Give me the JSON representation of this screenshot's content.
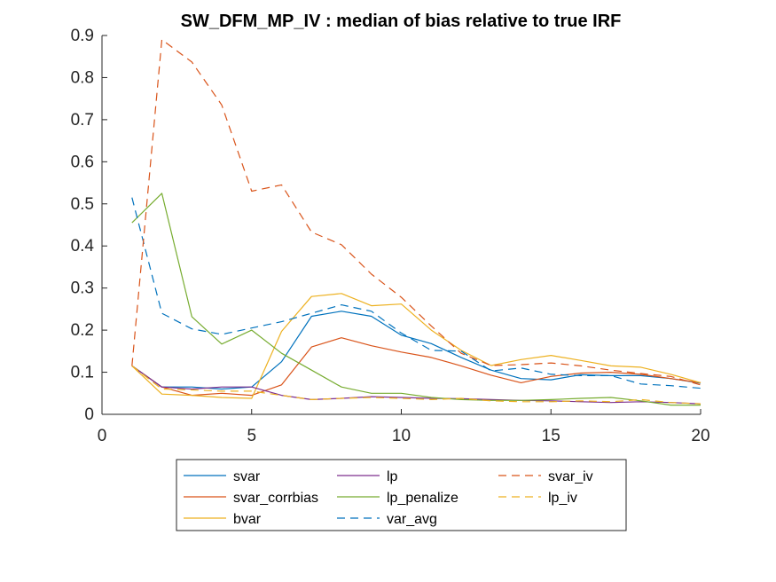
{
  "chart_data": {
    "type": "line",
    "title": "SW_DFM_MP_IV : median of bias relative to true IRF",
    "xlabel": "",
    "ylabel": "",
    "xlim": [
      0,
      20
    ],
    "ylim": [
      0,
      0.9
    ],
    "xticks": [
      0,
      5,
      10,
      15,
      20
    ],
    "yticks": [
      0,
      0.1,
      0.2,
      0.3,
      0.4,
      0.5,
      0.6,
      0.7,
      0.8,
      0.9
    ],
    "xtick_labels": [
      "0",
      "5",
      "10",
      "15",
      "20"
    ],
    "ytick_labels": [
      "0",
      "0.1",
      "0.2",
      "0.3",
      "0.4",
      "0.5",
      "0.6",
      "0.7",
      "0.8",
      "0.9"
    ],
    "grid": false,
    "legend_position": "bottom-outside",
    "x": [
      1,
      2,
      3,
      4,
      5,
      6,
      7,
      8,
      9,
      10,
      11,
      12,
      13,
      14,
      15,
      16,
      17,
      18,
      19,
      20
    ],
    "series": [
      {
        "name": "svar",
        "color": "#0072BD",
        "dash": "solid",
        "values": [
          0.115,
          0.065,
          0.065,
          0.06,
          0.065,
          0.125,
          0.233,
          0.245,
          0.233,
          0.188,
          0.168,
          0.135,
          0.105,
          0.085,
          0.082,
          0.094,
          0.092,
          0.092,
          0.085,
          0.074
        ]
      },
      {
        "name": "svar_corrbias",
        "color": "#D95319",
        "dash": "solid",
        "values": [
          0.115,
          0.065,
          0.045,
          0.05,
          0.045,
          0.07,
          0.16,
          0.182,
          0.163,
          0.148,
          0.135,
          0.115,
          0.093,
          0.075,
          0.09,
          0.098,
          0.1,
          0.095,
          0.085,
          0.075
        ]
      },
      {
        "name": "bvar",
        "color": "#EDB120",
        "dash": "solid",
        "values": [
          0.115,
          0.048,
          0.045,
          0.04,
          0.038,
          0.197,
          0.28,
          0.287,
          0.258,
          0.262,
          0.2,
          0.152,
          0.116,
          0.13,
          0.14,
          0.128,
          0.115,
          0.112,
          0.095,
          0.075
        ]
      },
      {
        "name": "lp",
        "color": "#7E2F8E",
        "dash": "solid",
        "values": [
          0.115,
          0.065,
          0.06,
          0.065,
          0.065,
          0.045,
          0.035,
          0.038,
          0.042,
          0.04,
          0.038,
          0.037,
          0.035,
          0.033,
          0.032,
          0.03,
          0.028,
          0.03,
          0.028,
          0.025
        ]
      },
      {
        "name": "lp_penalize",
        "color": "#77AC30",
        "dash": "solid",
        "values": [
          0.455,
          0.525,
          0.232,
          0.167,
          0.2,
          0.145,
          0.105,
          0.065,
          0.05,
          0.05,
          0.04,
          0.035,
          0.033,
          0.033,
          0.035,
          0.038,
          0.04,
          0.032,
          0.022,
          0.022
        ]
      },
      {
        "name": "var_avg",
        "color": "#0072BD",
        "dash": "dashed",
        "values": [
          0.515,
          0.24,
          0.203,
          0.19,
          0.205,
          0.22,
          0.24,
          0.26,
          0.245,
          0.193,
          0.152,
          0.15,
          0.103,
          0.11,
          0.095,
          0.092,
          0.092,
          0.072,
          0.068,
          0.062
        ]
      },
      {
        "name": "svar_iv",
        "color": "#D95319",
        "dash": "dashed",
        "values": [
          0.115,
          0.89,
          0.837,
          0.735,
          0.53,
          0.545,
          0.433,
          0.403,
          0.333,
          0.278,
          0.21,
          0.145,
          0.116,
          0.118,
          0.122,
          0.115,
          0.105,
          0.097,
          0.09,
          0.07
        ]
      },
      {
        "name": "lp_iv",
        "color": "#EDB120",
        "dash": "dashed",
        "values": [
          0.115,
          0.06,
          0.058,
          0.055,
          0.055,
          0.045,
          0.035,
          0.038,
          0.04,
          0.038,
          0.035,
          0.038,
          0.032,
          0.03,
          0.03,
          0.032,
          0.03,
          0.035,
          0.028,
          0.025
        ]
      }
    ]
  }
}
